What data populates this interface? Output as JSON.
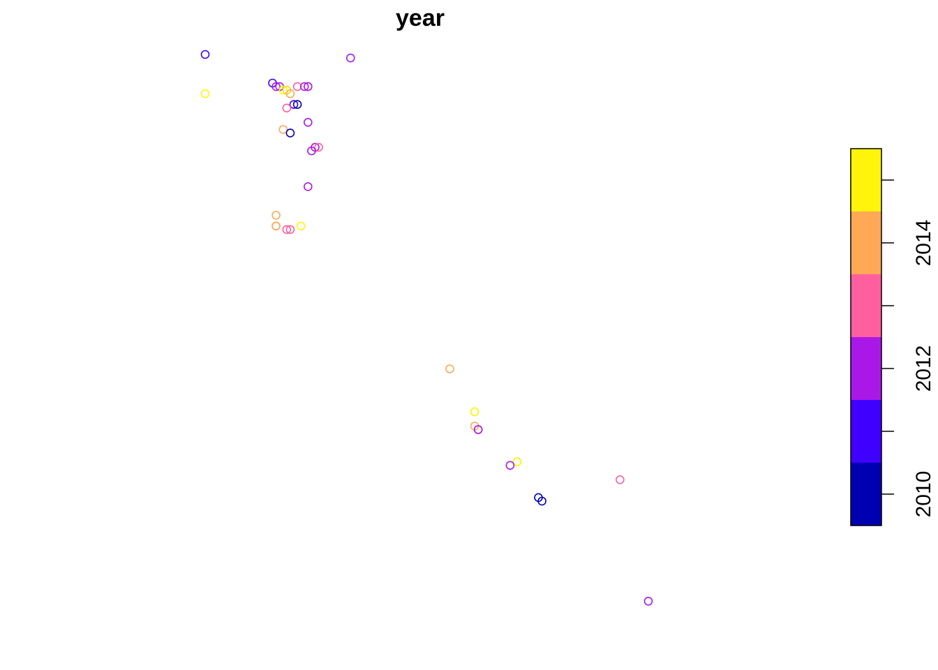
{
  "chart_data": {
    "type": "scatter",
    "title": "year",
    "xlabel": "",
    "ylabel": "",
    "legend": {
      "type": "colorbar",
      "position": "right",
      "bins": [
        {
          "from": 2009.5,
          "to": 2010.5,
          "color": "#0000B3"
        },
        {
          "from": 2010.5,
          "to": 2011.5,
          "color": "#3F00FF"
        },
        {
          "from": 2011.5,
          "to": 2012.5,
          "color": "#AA18E8"
        },
        {
          "from": 2012.5,
          "to": 2013.5,
          "color": "#FF5F9F"
        },
        {
          "from": 2013.5,
          "to": 2014.5,
          "color": "#FFA856"
        },
        {
          "from": 2014.5,
          "to": 2015.5,
          "color": "#FFF50A"
        }
      ],
      "ticks": [
        2010,
        2011,
        2012,
        2013,
        2014,
        2015
      ],
      "tick_labels": [
        "2010",
        "",
        "2012",
        "",
        "2014",
        ""
      ]
    },
    "points": [
      {
        "x": 0.3,
        "y": 0.92,
        "year": 2011
      },
      {
        "x": 0.3,
        "y": 0.81,
        "year": 2015
      },
      {
        "x": 0.71,
        "y": 0.91,
        "year": 2012
      },
      {
        "x": 0.49,
        "y": 0.84,
        "year": 2011
      },
      {
        "x": 0.5,
        "y": 0.83,
        "year": 2012
      },
      {
        "x": 0.51,
        "y": 0.83,
        "year": 2012
      },
      {
        "x": 0.52,
        "y": 0.82,
        "year": 2015
      },
      {
        "x": 0.53,
        "y": 0.82,
        "year": 2010
      },
      {
        "x": 0.53,
        "y": 0.82,
        "year": 2015
      },
      {
        "x": 0.54,
        "y": 0.81,
        "year": 2014
      },
      {
        "x": 0.56,
        "y": 0.83,
        "year": 2013
      },
      {
        "x": 0.58,
        "y": 0.83,
        "year": 2012
      },
      {
        "x": 0.59,
        "y": 0.83,
        "year": 2013
      },
      {
        "x": 0.59,
        "y": 0.83,
        "year": 2012
      },
      {
        "x": 0.55,
        "y": 0.78,
        "year": 2011
      },
      {
        "x": 0.56,
        "y": 0.78,
        "year": 2010
      },
      {
        "x": 0.53,
        "y": 0.77,
        "year": 2013
      },
      {
        "x": 0.59,
        "y": 0.73,
        "year": 2012
      },
      {
        "x": 0.52,
        "y": 0.71,
        "year": 2014
      },
      {
        "x": 0.54,
        "y": 0.7,
        "year": 2010
      },
      {
        "x": 0.61,
        "y": 0.66,
        "year": 2012
      },
      {
        "x": 0.62,
        "y": 0.66,
        "year": 2013
      },
      {
        "x": 0.6,
        "y": 0.65,
        "year": 2012
      },
      {
        "x": 0.59,
        "y": 0.55,
        "year": 2012
      },
      {
        "x": 0.5,
        "y": 0.47,
        "year": 2014
      },
      {
        "x": 0.5,
        "y": 0.44,
        "year": 2014
      },
      {
        "x": 0.5,
        "y": 0.44,
        "year": 2014
      },
      {
        "x": 0.53,
        "y": 0.43,
        "year": 2013
      },
      {
        "x": 0.54,
        "y": 0.43,
        "year": 2013
      },
      {
        "x": 0.57,
        "y": 0.44,
        "year": 2015
      },
      {
        "x": 0.99,
        "y": 0.04,
        "year": 2014
      },
      {
        "x": 1.06,
        "y": -0.08,
        "year": 2015
      },
      {
        "x": 1.06,
        "y": -0.08,
        "year": 2015
      },
      {
        "x": 1.06,
        "y": -0.12,
        "year": 2014
      },
      {
        "x": 1.07,
        "y": -0.13,
        "year": 2013
      },
      {
        "x": 1.07,
        "y": -0.13,
        "year": 2012
      },
      {
        "x": 1.18,
        "y": -0.22,
        "year": 2015
      },
      {
        "x": 1.18,
        "y": -0.22,
        "year": 2015
      },
      {
        "x": 1.16,
        "y": -0.23,
        "year": 2012
      },
      {
        "x": 1.24,
        "y": -0.32,
        "year": 2010
      },
      {
        "x": 1.25,
        "y": -0.33,
        "year": 2010
      },
      {
        "x": 1.47,
        "y": -0.27,
        "year": 2013
      },
      {
        "x": 1.55,
        "y": -0.61,
        "year": 2012
      }
    ]
  }
}
